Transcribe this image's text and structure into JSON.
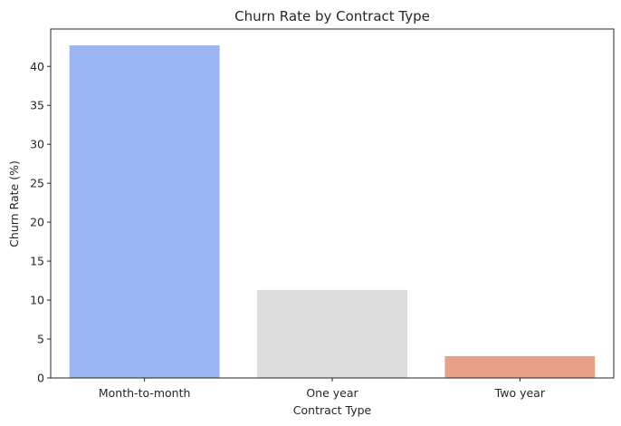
{
  "chart_data": {
    "type": "bar",
    "title": "Churn Rate by Contract Type",
    "xlabel": "Contract Type",
    "ylabel": "Churn Rate (%)",
    "categories": [
      "Month-to-month",
      "One year",
      "Two year"
    ],
    "values": [
      42.7,
      11.3,
      2.8
    ],
    "colors": [
      "#9bb5f2",
      "#dcdcdc",
      "#e8a087"
    ],
    "ylim": [
      0,
      44.8
    ],
    "yticks": [
      0,
      5,
      10,
      15,
      20,
      25,
      30,
      35,
      40
    ],
    "grid": false,
    "legend": "none"
  }
}
